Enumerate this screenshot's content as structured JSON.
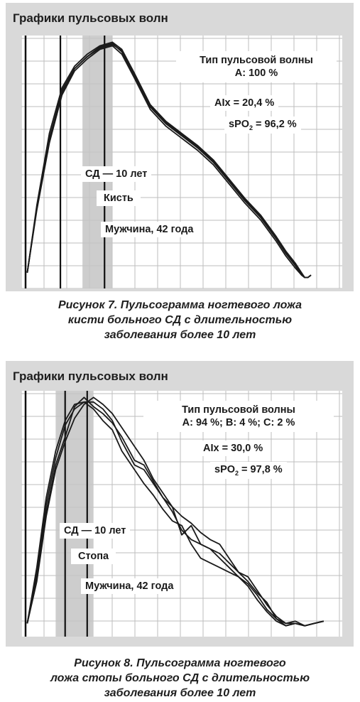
{
  "charts": [
    {
      "title": "Графики пульсовых волн",
      "wave_type_label": "Тип пульсовой волны",
      "wave_type_value": "A: 100 %",
      "aix": "AIx = 20,4 %",
      "spo2_prefix": "sPO",
      "spo2_sub": "2",
      "spo2_value": " = 96,2 %",
      "duration": "СД — 10 лет",
      "site": "Кисть",
      "patient": "Мужчина, 42 года",
      "caption": [
        "Рисунок 7. Пульсограмма ногтевого ложа",
        "кисти больного СД с длительностью",
        "заболевания более 10 лет"
      ]
    },
    {
      "title": "Графики пульсовых волн",
      "wave_type_label": "Тип пульсовой волны",
      "wave_type_value": "A: 94 %; B: 4 %; C: 2 %",
      "aix": "AIx = 30,0 %",
      "spo2_prefix": "sPO",
      "spo2_sub": "2",
      "spo2_value": " = 97,8 %",
      "duration": "СД — 10 лет",
      "site": "Стопа",
      "patient": "Мужчина, 42 года",
      "caption": [
        "Рисунок 8. Пульсограмма ногтевого",
        "ложа стопы больного СД с длительностью",
        "заболевания более 10 лет"
      ]
    }
  ],
  "chart_data": [
    {
      "type": "line",
      "xlim": [
        0,
        100
      ],
      "ylim": [
        0,
        100
      ],
      "grid": true,
      "shaded_band": [
        18.5,
        28
      ],
      "vertical_markers": [
        11.5,
        25.5
      ],
      "series": [
        {
          "x": [
            1,
            4,
            8,
            12,
            16,
            20,
            24,
            28,
            31,
            35,
            40,
            45,
            50,
            55,
            60,
            65,
            70,
            75,
            80,
            83,
            86,
            88,
            89,
            90,
            91
          ],
          "y": [
            3,
            30,
            59,
            78,
            88,
            93,
            97,
            98.5,
            95,
            85,
            72,
            65,
            60,
            55,
            49,
            41,
            33,
            26,
            17,
            11,
            6,
            2,
            1,
            1,
            2
          ]
        },
        {
          "x": [
            1,
            4,
            8,
            12,
            16,
            20,
            24,
            28,
            31,
            35,
            40,
            45,
            50,
            55,
            60,
            65,
            70,
            75,
            80,
            83,
            86,
            88,
            89,
            90,
            91
          ],
          "y": [
            3,
            31,
            61,
            80,
            89,
            94,
            97.5,
            99,
            96,
            86,
            73,
            66,
            61,
            56,
            50,
            42,
            34,
            27,
            18,
            12,
            7,
            3,
            1,
            1,
            2
          ]
        },
        {
          "x": [
            1,
            4,
            8,
            12,
            16,
            20,
            24,
            28,
            31,
            35,
            40,
            45,
            50,
            55,
            60,
            65,
            70,
            75,
            80,
            83,
            86,
            88,
            89,
            90,
            91
          ],
          "y": [
            3,
            29,
            57,
            77,
            87,
            92,
            96,
            97.5,
            94,
            84,
            71,
            64,
            59,
            54,
            48,
            40,
            32,
            25,
            16,
            10,
            5,
            2,
            1,
            1,
            2
          ]
        },
        {
          "x": [
            1,
            4,
            8,
            12,
            16,
            20,
            24,
            28,
            31,
            35,
            40,
            45,
            50,
            55,
            60,
            65,
            70,
            75,
            80,
            83,
            86,
            88,
            89,
            90,
            91
          ],
          "y": [
            3,
            30,
            58,
            79,
            88,
            93,
            96.5,
            98,
            95.5,
            85.5,
            72.5,
            65.5,
            60.5,
            55.5,
            49.5,
            41.5,
            33.5,
            26.5,
            17.5,
            11.5,
            6.5,
            2.5,
            1,
            1,
            2
          ]
        }
      ]
    },
    {
      "type": "line",
      "xlim": [
        0,
        100
      ],
      "ylim": [
        0,
        100
      ],
      "grid": true,
      "shaded_band": [
        10,
        22
      ],
      "vertical_markers": [
        13,
        20
      ],
      "series": [
        {
          "x": [
            1,
            4,
            7,
            10,
            13,
            16,
            19,
            22,
            25,
            28,
            31,
            35,
            38,
            41,
            44,
            47,
            50,
            53,
            56,
            59,
            62,
            65,
            68,
            71,
            74,
            77,
            80,
            83,
            86,
            89,
            92,
            95
          ],
          "y": [
            2,
            22,
            50,
            70,
            82,
            95,
            99,
            95,
            92,
            88,
            82,
            72,
            70,
            63,
            56,
            52,
            48,
            45,
            41,
            38,
            36,
            30,
            24,
            20,
            15,
            11,
            4,
            2,
            3,
            1,
            2,
            3
          ]
        },
        {
          "x": [
            1,
            4,
            7,
            10,
            13,
            16,
            19,
            22,
            25,
            28,
            31,
            35,
            38,
            41,
            44,
            47,
            50,
            53,
            56,
            59,
            62,
            65,
            68,
            71,
            74,
            77,
            80,
            83,
            86,
            89,
            92,
            95
          ],
          "y": [
            2,
            24,
            53,
            73,
            87,
            94,
            97,
            97,
            94,
            89,
            80,
            70,
            68,
            62,
            56,
            50,
            42,
            38,
            36,
            34,
            30,
            26,
            22,
            18,
            12,
            7,
            3,
            1,
            2,
            1,
            2,
            3
          ]
        },
        {
          "x": [
            1,
            4,
            7,
            10,
            13,
            16,
            19,
            22,
            25,
            28,
            31,
            35,
            38,
            41,
            44,
            47,
            50,
            53,
            56,
            59,
            62,
            65,
            68,
            71,
            74,
            77,
            80,
            83,
            86,
            89,
            92,
            95
          ],
          "y": [
            2,
            20,
            48,
            68,
            80,
            90,
            96,
            99,
            96,
            92,
            86,
            78,
            72,
            64,
            58,
            52,
            40,
            44,
            36,
            34,
            32,
            28,
            24,
            22,
            16,
            10,
            5,
            2,
            2,
            1,
            2,
            3
          ]
        },
        {
          "x": [
            1,
            4,
            7,
            10,
            13,
            16,
            19,
            22,
            25,
            28,
            31,
            35,
            38,
            41,
            44,
            47,
            50,
            53,
            56,
            59,
            62,
            65,
            68,
            71,
            74,
            77,
            80,
            83,
            86,
            89,
            92,
            95
          ],
          "y": [
            2,
            26,
            56,
            76,
            89,
            96,
            97,
            94,
            89,
            85,
            76,
            68,
            62,
            57,
            51,
            46,
            44,
            36,
            30,
            28,
            26,
            24,
            22,
            19,
            14,
            8,
            4,
            1,
            2,
            1,
            2,
            3
          ]
        }
      ]
    }
  ]
}
